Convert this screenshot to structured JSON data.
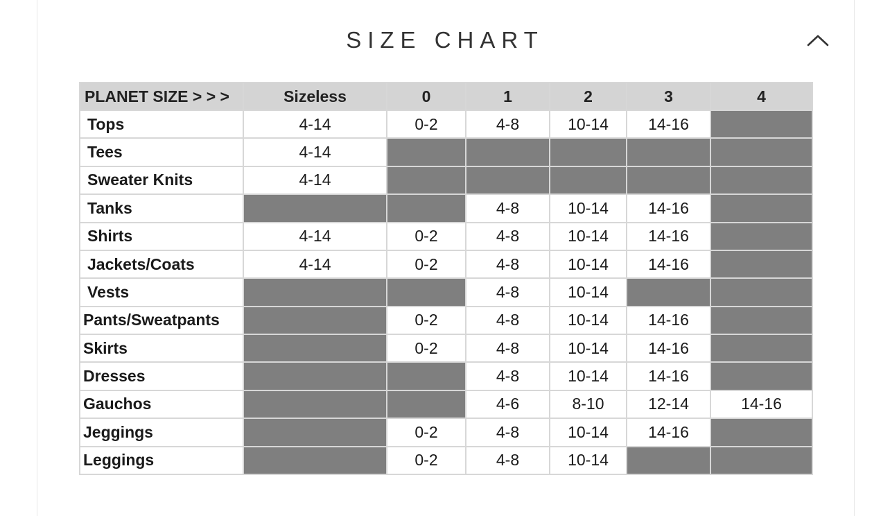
{
  "section": {
    "title": "SIZE CHART",
    "toggle_icon": "chevron-up-icon"
  },
  "size_chart": {
    "header_label": "PLANET SIZE > > >",
    "columns": [
      "Sizeless",
      "0",
      "1",
      "2",
      "3",
      "4"
    ],
    "rows": [
      {
        "label": "Tops",
        "values": [
          "4-14",
          "0-2",
          "4-8",
          "10-14",
          "14-16",
          ""
        ]
      },
      {
        "label": "Tees",
        "values": [
          "4-14",
          "",
          "",
          "",
          "",
          ""
        ]
      },
      {
        "label": "Sweater Knits",
        "values": [
          "4-14",
          "",
          "",
          "",
          "",
          ""
        ]
      },
      {
        "label": "Tanks",
        "values": [
          "",
          "",
          "4-8",
          "10-14",
          "14-16",
          ""
        ]
      },
      {
        "label": "Shirts",
        "values": [
          "4-14",
          "0-2",
          "4-8",
          "10-14",
          "14-16",
          ""
        ]
      },
      {
        "label": "Jackets/Coats",
        "values": [
          "4-14",
          "0-2",
          "4-8",
          "10-14",
          "14-16",
          ""
        ]
      },
      {
        "label": "Vests",
        "values": [
          "",
          "",
          "4-8",
          "10-14",
          "",
          ""
        ]
      },
      {
        "label": "Pants/Sweatpants",
        "values": [
          "",
          "0-2",
          "4-8",
          "10-14",
          "14-16",
          ""
        ]
      },
      {
        "label": "Skirts",
        "values": [
          "",
          "0-2",
          "4-8",
          "10-14",
          "14-16",
          ""
        ]
      },
      {
        "label": "Dresses",
        "values": [
          "",
          "",
          "4-8",
          "10-14",
          "14-16",
          ""
        ]
      },
      {
        "label": "Gauchos",
        "values": [
          "",
          "",
          "4-6",
          "8-10",
          "12-14",
          "14-16"
        ]
      },
      {
        "label": "Jeggings",
        "values": [
          "",
          "0-2",
          "4-8",
          "10-14",
          "14-16",
          ""
        ]
      },
      {
        "label": "Leggings",
        "values": [
          "",
          "0-2",
          "4-8",
          "10-14",
          "",
          ""
        ]
      }
    ]
  },
  "colors": {
    "unavailable_cell": "#7f7f7f",
    "header_bg": "#d4d4d4"
  }
}
